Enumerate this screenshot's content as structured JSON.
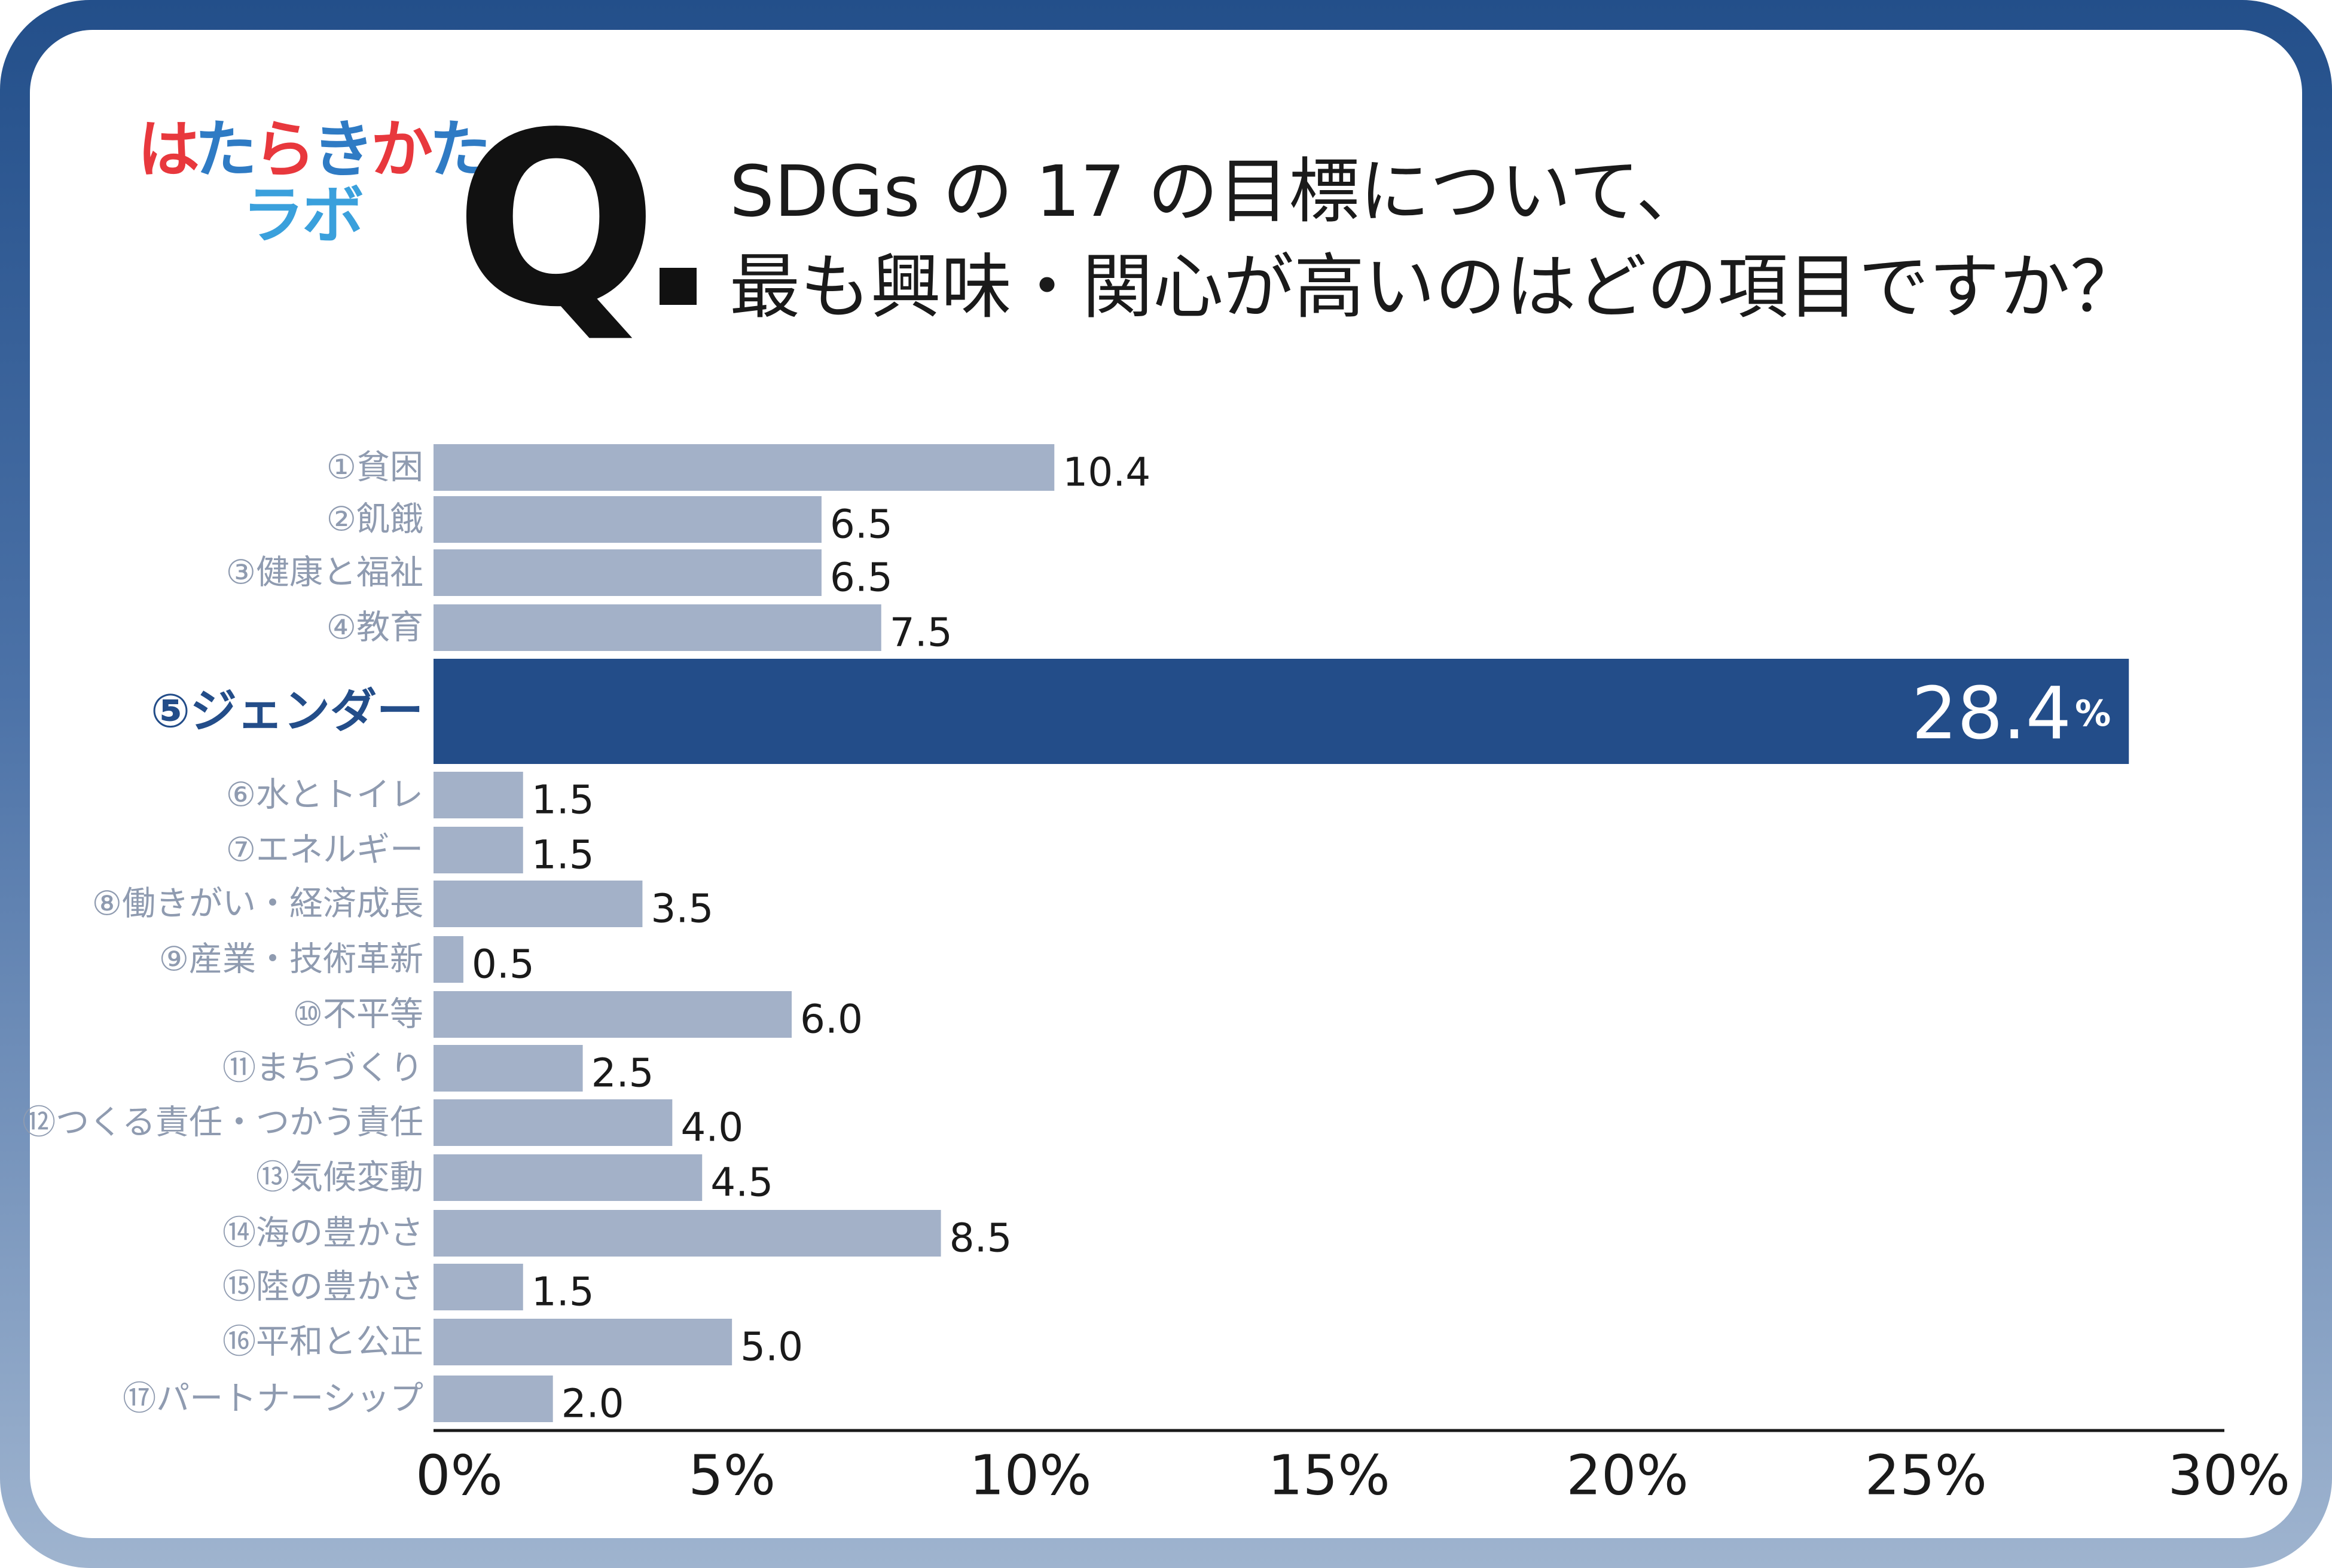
{
  "header": {
    "logo_line1_chars": [
      {
        "ch": "は",
        "color": "#e8383d"
      },
      {
        "ch": "た",
        "color": "#2f7bc4"
      },
      {
        "ch": "ら",
        "color": "#e8383d"
      },
      {
        "ch": "き",
        "color": "#2f7bc4"
      },
      {
        "ch": "か",
        "color": "#e8383d"
      },
      {
        "ch": "た",
        "color": "#2f7bc4"
      }
    ],
    "logo_line2_chars": [
      {
        "ch": "ラ",
        "color": "#3aa0dc"
      },
      {
        "ch": "ボ",
        "color": "#3aa0dc"
      }
    ],
    "q_letter": "Q",
    "question_line1": "SDGs の 17 の目標について、",
    "question_line2": "最も興味・関心が高いのはどの項目ですか？"
  },
  "chart_data": {
    "type": "bar",
    "orientation": "horizontal",
    "categories": [
      "①貧困",
      "②飢餓",
      "③健康と福祉",
      "④教育",
      "⑤ジェンダー",
      "⑥水とトイレ",
      "⑦エネルギー",
      "⑧働きがい・経済成長",
      "⑨産業・技術革新",
      "⑩不平等",
      "⑪まちづくり",
      "⑫つくる責任・つかう責任",
      "⑬気候変動",
      "⑭海の豊かさ",
      "⑮陸の豊かさ",
      "⑯平和と公正",
      "⑰パートナーシップ"
    ],
    "values": [
      10.4,
      6.5,
      6.5,
      7.5,
      28.4,
      1.5,
      1.5,
      3.5,
      0.5,
      6.0,
      2.5,
      4.0,
      4.5,
      8.5,
      1.5,
      5.0,
      2.0
    ],
    "value_labels": [
      "10.4",
      "6.5",
      "6.5",
      "7.5",
      "28.4",
      "1.5",
      "1.5",
      "3.5",
      "0.5",
      "6.0",
      "2.5",
      "4.0",
      "4.5",
      "8.5",
      "1.5",
      "5.0",
      "2.0"
    ],
    "highlight_index": 4,
    "highlight_unit": "%",
    "xlim": [
      0,
      30
    ],
    "x_ticks": [
      "0%",
      "5%",
      "10%",
      "15%",
      "20%",
      "25%",
      "30%"
    ],
    "grid": false,
    "colors": {
      "bar": "#a3b1c8",
      "highlight_bar": "#234d89",
      "category_label": "#8f9bb0",
      "highlight_label": "#234d89",
      "value_label": "#1a1a1a",
      "highlight_value_label": "#ffffff",
      "axis": "#1a1a1a"
    }
  }
}
